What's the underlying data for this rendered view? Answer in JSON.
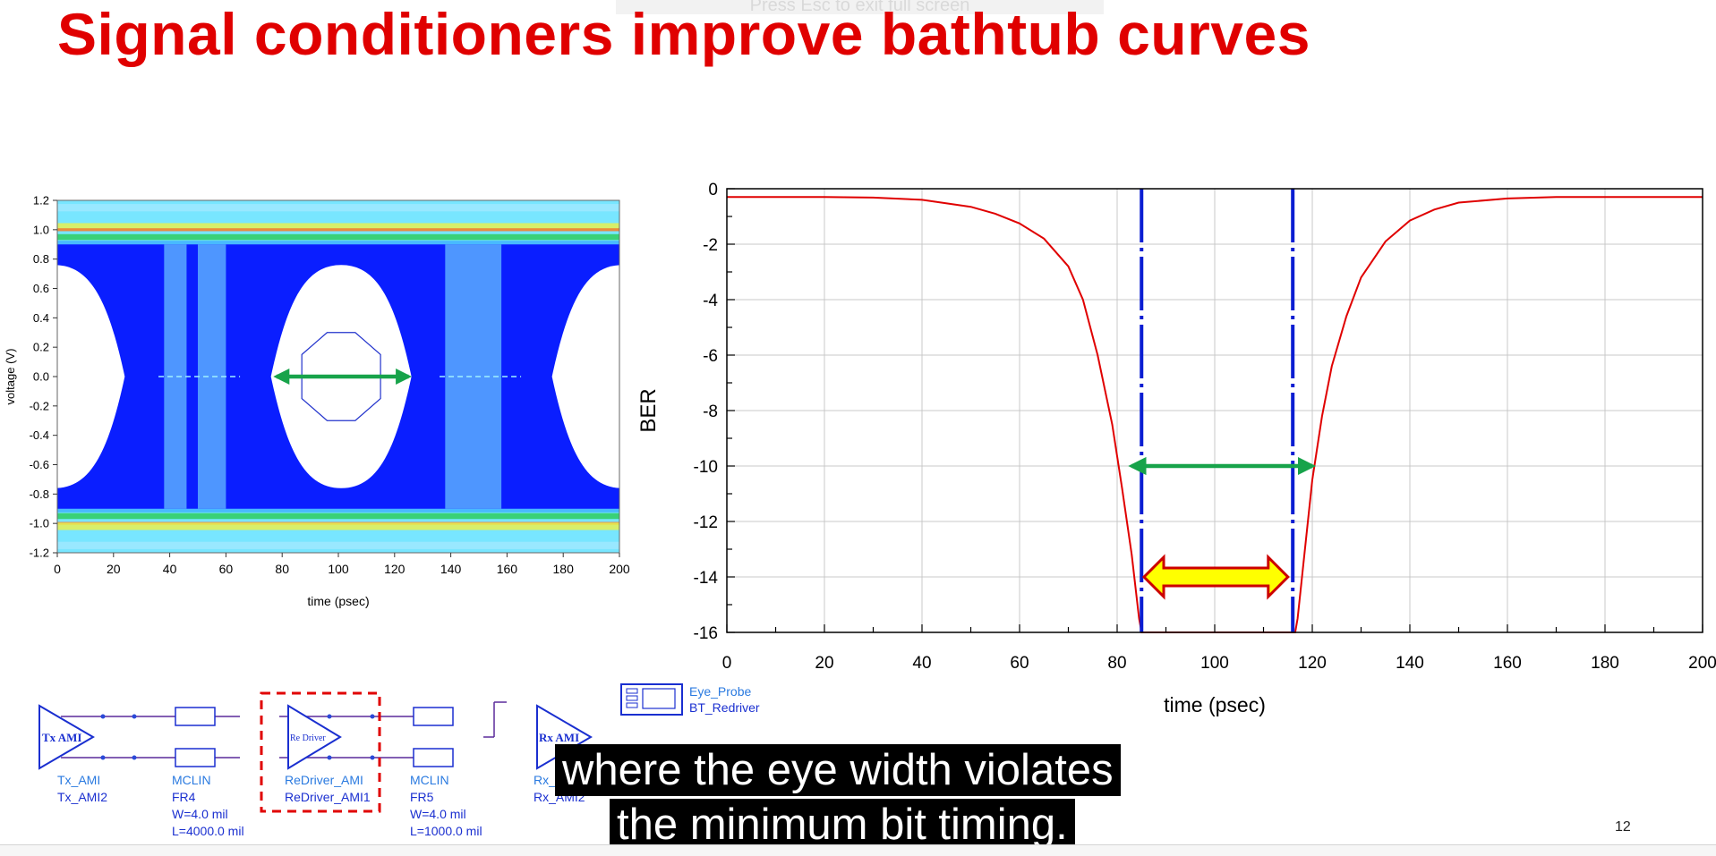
{
  "slide": {
    "title": "Signal conditioners improve bathtub curves",
    "fullscreen_hint": "Press  Esc  to exit full screen",
    "page_number": "12"
  },
  "subtitle": {
    "line1": "where the eye width violates",
    "line2": "the minimum bit timing."
  },
  "colors": {
    "title": "#e00000",
    "eye_trace": "#0a1eff",
    "eye_background": "#78e6ff",
    "bathtub_curve": "#e00000",
    "limit_lines": "#0a1ed2",
    "arrow_green": "#17a34a",
    "arrow_yellow_fill": "#ffff00",
    "arrow_yellow_stroke": "#cc0000"
  },
  "chart_data": [
    {
      "type": "heatmap",
      "title": "",
      "xlabel": "time (psec)",
      "ylabel": "voltage (V)",
      "xlim": [
        0,
        200
      ],
      "ylim": [
        -1.2,
        1.2
      ],
      "x_ticks": [
        "0",
        "20",
        "40",
        "60",
        "80",
        "100",
        "120",
        "140",
        "160",
        "180",
        "200"
      ],
      "y_ticks": [
        "1.2",
        "1.0",
        "0.8",
        "0.6",
        "0.4",
        "0.2",
        "0.0",
        "-0.2",
        "-0.4",
        "-0.6",
        "-0.8",
        "-1.0",
        "-1.2"
      ],
      "eye_openings": [
        {
          "x_start": 76,
          "x_end": 126,
          "y_top": 0.76,
          "y_bottom": -0.76,
          "center_x": 101
        }
      ],
      "mask": {
        "center_x": 101,
        "half_width": 14,
        "v_top": 0.3,
        "v_bottom": -0.3,
        "v_corner": 0.15
      },
      "eye_width_arrow": {
        "x_start": 78,
        "x_end": 125,
        "y": 0.0
      }
    },
    {
      "type": "line",
      "title": "",
      "xlabel": "time (psec)",
      "ylabel": "BER",
      "xlim": [
        0,
        200
      ],
      "ylim": [
        -16,
        0
      ],
      "x_ticks": [
        "0",
        "20",
        "40",
        "60",
        "80",
        "100",
        "120",
        "140",
        "160",
        "180",
        "200"
      ],
      "y_ticks": [
        "0",
        "-2",
        "-4",
        "-6",
        "-8",
        "-10",
        "-12",
        "-14",
        "-16"
      ],
      "grid": true,
      "series": [
        {
          "x": [
            0,
            20,
            30,
            40,
            50,
            55,
            60,
            65,
            70,
            73,
            76,
            79,
            81,
            83,
            84.5,
            85,
            116.5,
            117,
            118.5,
            120,
            122,
            124,
            127,
            130,
            135,
            140,
            145,
            150,
            160,
            170,
            180,
            200
          ],
          "y": [
            -0.3,
            -0.3,
            -0.32,
            -0.4,
            -0.65,
            -0.9,
            -1.25,
            -1.8,
            -2.8,
            -4.0,
            -6.0,
            -8.5,
            -10.8,
            -13.2,
            -15.5,
            -16.0,
            -16.0,
            -15.5,
            -13.0,
            -10.5,
            -8.2,
            -6.4,
            -4.6,
            -3.2,
            -1.9,
            -1.15,
            -0.75,
            -0.5,
            -0.35,
            -0.3,
            -0.3,
            -0.3
          ]
        }
      ],
      "vertical_limits_x": [
        85,
        116
      ],
      "green_arrow": {
        "x_start": 83,
        "x_end": 120,
        "y": -10
      },
      "yellow_arrow": {
        "x_start": 85.5,
        "x_end": 115,
        "y": -14
      }
    }
  ],
  "schematic": {
    "components": [
      {
        "symbol": "Tx AMI",
        "name": "Tx_AMI",
        "instance": "Tx_AMI2",
        "params": []
      },
      {
        "symbol": "",
        "name": "MCLIN",
        "instance": "FR4",
        "params": [
          "W=4.0 mil",
          "L=4000.0 mil"
        ]
      },
      {
        "symbol": "Re Driver",
        "name": "ReDriver_AMI",
        "instance": "ReDriver_AMI1",
        "params": []
      },
      {
        "symbol": "",
        "name": "MCLIN",
        "instance": "FR5",
        "params": [
          "W=4.0 mil",
          "L=1000.0 mil"
        ]
      },
      {
        "symbol": "Rx AMI",
        "name": "Rx_",
        "instance": "Rx_AMI2",
        "params": []
      }
    ],
    "probe": {
      "name": "Eye_Probe",
      "instance": "BT_Redriver"
    }
  }
}
